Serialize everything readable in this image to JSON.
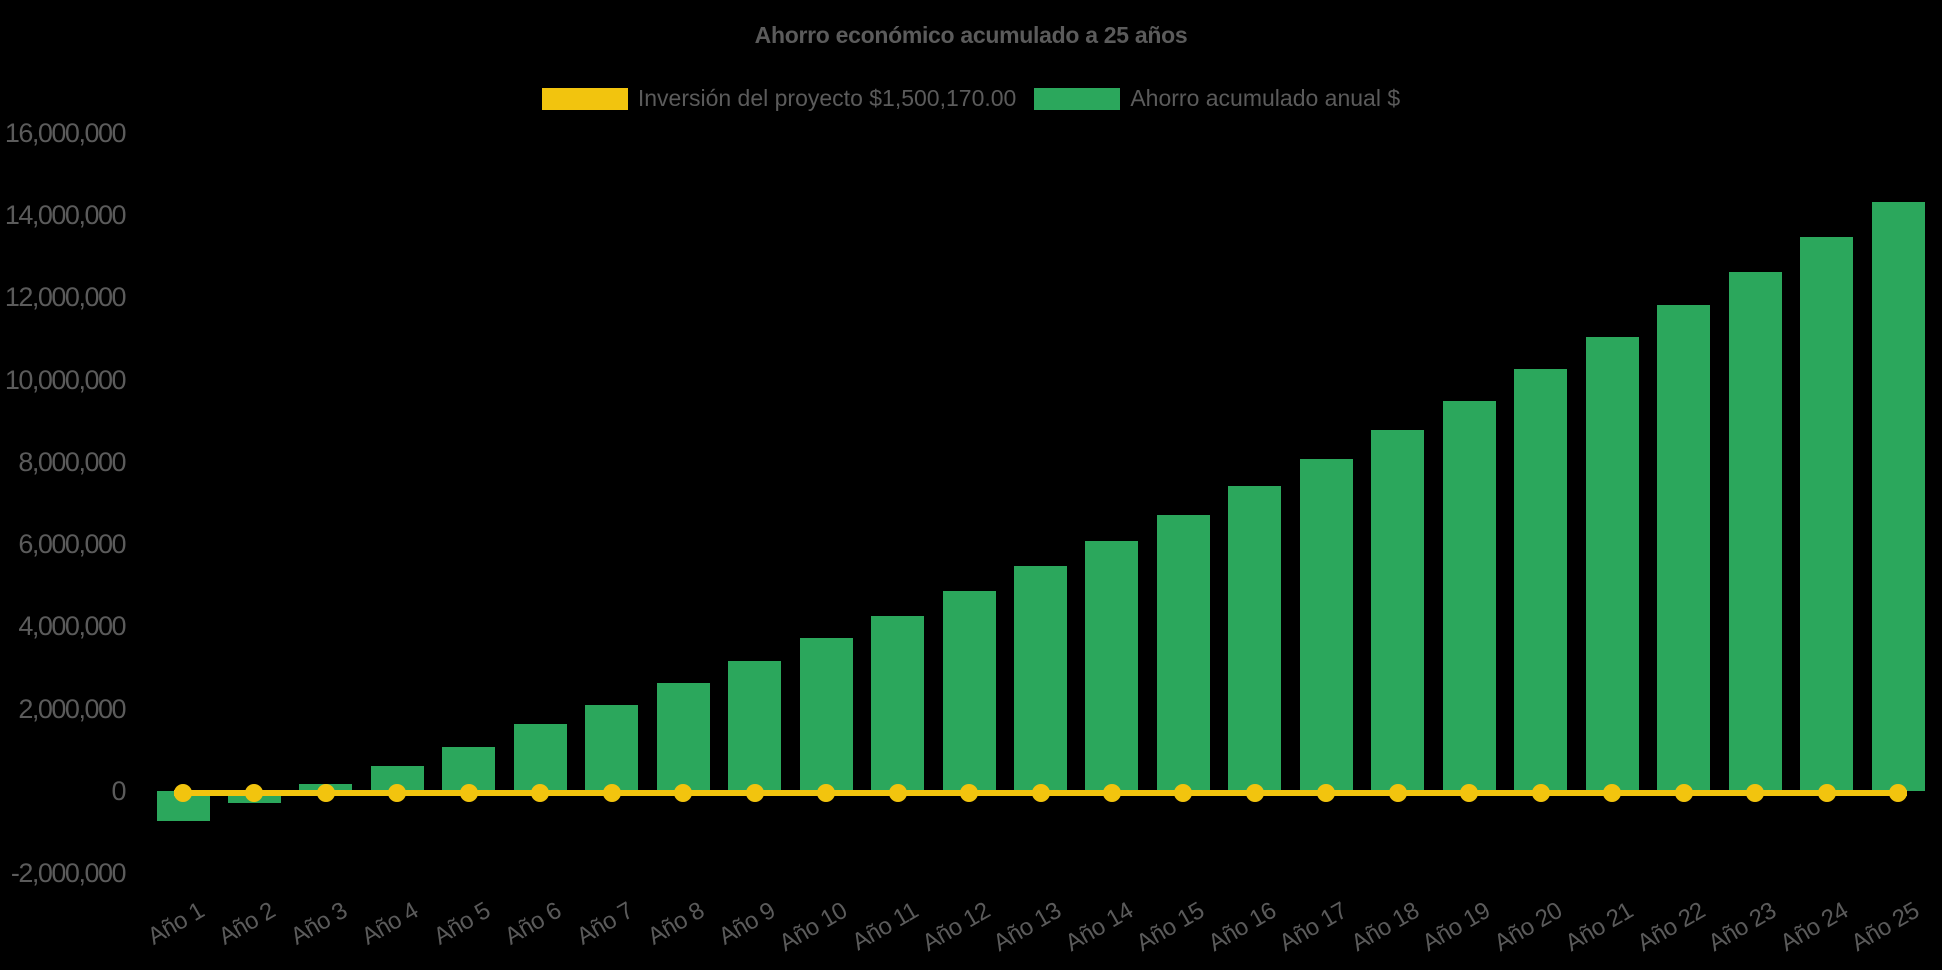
{
  "chart_data": {
    "type": "bar",
    "title": "Ahorro económico acumulado a 25 años",
    "categories": [
      "Año 1",
      "Año 2",
      "Año 3",
      "Año 4",
      "Año 5",
      "Año 6",
      "Año 7",
      "Año 8",
      "Año 9",
      "Año 10",
      "Año 11",
      "Año 12",
      "Año 13",
      "Año 14",
      "Año 15",
      "Año 16",
      "Año 17",
      "Año 18",
      "Año 19",
      "Año 20",
      "Año 21",
      "Año 22",
      "Año 23",
      "Año 24",
      "Año 25"
    ],
    "series": [
      {
        "name": "Inversión del proyecto $1,500,170.00",
        "type": "line",
        "color": "#F2C40E",
        "marker": "circle",
        "investment_value": 1500170,
        "plotted_at_value": 0
      },
      {
        "name": "Ahorro acumulado anual $",
        "type": "bar",
        "color": "#2BA75C",
        "values": [
          -730000,
          -300000,
          170000,
          610000,
          1070000,
          1630000,
          2090000,
          2620000,
          3160000,
          3720000,
          4250000,
          4860000,
          5470000,
          6080000,
          6710000,
          7410000,
          8070000,
          8770000,
          9480000,
          10260000,
          11030000,
          11810000,
          12610000,
          13460000,
          14310000
        ]
      }
    ],
    "xlabel": "",
    "ylabel": "",
    "ylim": [
      -2000000,
      16000000
    ],
    "y_ticks": {
      "values": [
        16000000,
        14000000,
        12000000,
        10000000,
        8000000,
        6000000,
        4000000,
        2000000,
        0,
        -2000000
      ],
      "labels": [
        "16,000,000",
        "14,000,000",
        "12,000,000",
        "10,000,000",
        "8,000,000",
        "6,000,000",
        "4,000,000",
        "2,000,000",
        "0",
        "-2,000,000"
      ]
    },
    "grid": "off",
    "legend_position": "top",
    "x_tick_rotation_deg": -30
  },
  "colors": {
    "background": "#000000",
    "text": "#5B5B5B",
    "bar_green": "#2BA75C",
    "line_yellow": "#F2C40E"
  }
}
